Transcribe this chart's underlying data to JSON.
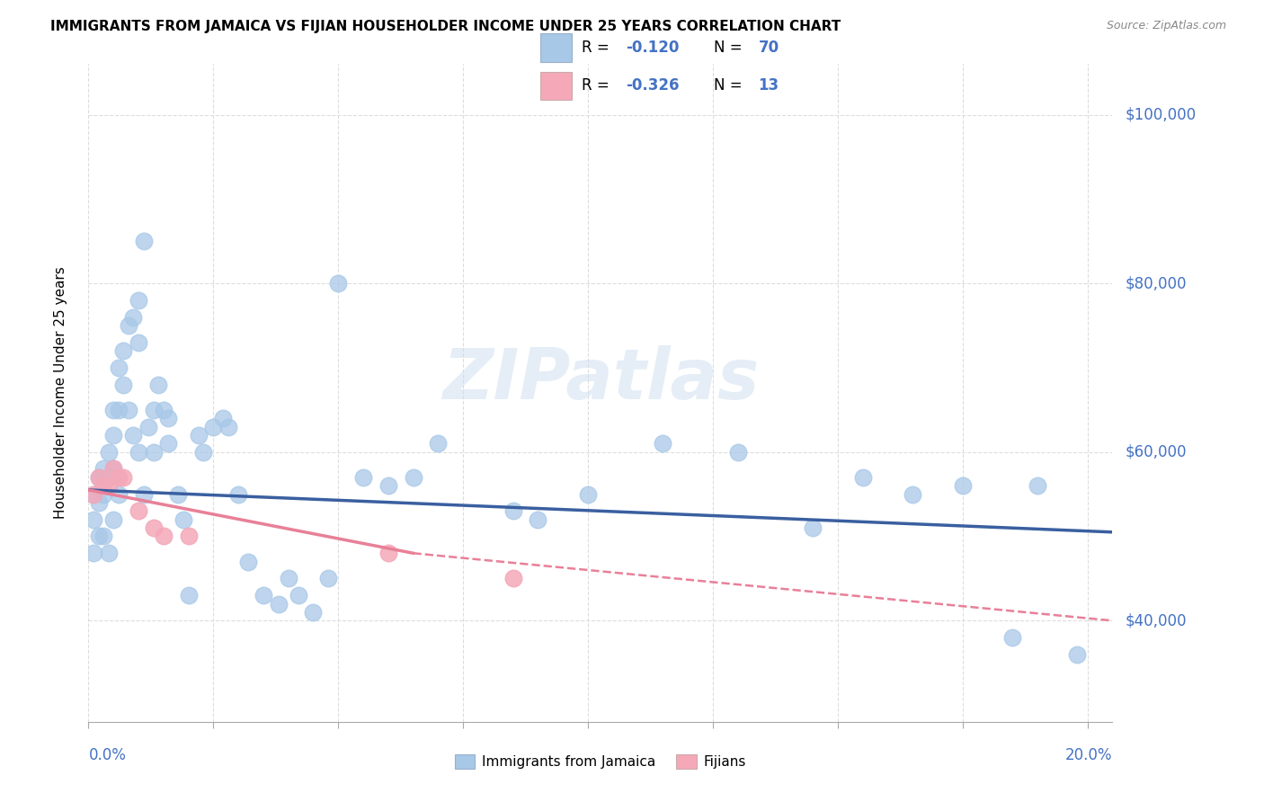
{
  "title": "IMMIGRANTS FROM JAMAICA VS FIJIAN HOUSEHOLDER INCOME UNDER 25 YEARS CORRELATION CHART",
  "source": "Source: ZipAtlas.com",
  "ylabel": "Householder Income Under 25 years",
  "legend1_label": "Immigrants from Jamaica",
  "legend2_label": "Fijians",
  "r1": "-0.120",
  "n1": "70",
  "r2": "-0.326",
  "n2": "13",
  "color_jamaica": "#a8c8e8",
  "color_fijian": "#f4a8b8",
  "color_jamaica_line": "#3a5fa0",
  "color_fijian_line": "#e88098",
  "color_blue": "#4472c4",
  "watermark": "ZIPatlas",
  "y_tick_labels": [
    "$40,000",
    "$60,000",
    "$80,000",
    "$100,000"
  ],
  "y_tick_values": [
    40000,
    60000,
    80000,
    100000
  ],
  "xlim": [
    0.0,
    0.205
  ],
  "ylim": [
    28000,
    106000
  ],
  "jamaica_x": [
    0.001,
    0.001,
    0.001,
    0.002,
    0.002,
    0.002,
    0.003,
    0.003,
    0.003,
    0.004,
    0.004,
    0.004,
    0.005,
    0.005,
    0.005,
    0.005,
    0.006,
    0.006,
    0.006,
    0.007,
    0.007,
    0.008,
    0.008,
    0.009,
    0.009,
    0.01,
    0.01,
    0.01,
    0.011,
    0.011,
    0.012,
    0.013,
    0.013,
    0.014,
    0.015,
    0.016,
    0.016,
    0.018,
    0.019,
    0.02,
    0.022,
    0.023,
    0.025,
    0.027,
    0.028,
    0.03,
    0.032,
    0.035,
    0.038,
    0.04,
    0.042,
    0.045,
    0.048,
    0.05,
    0.055,
    0.06,
    0.065,
    0.07,
    0.085,
    0.09,
    0.1,
    0.115,
    0.13,
    0.145,
    0.155,
    0.165,
    0.175,
    0.185,
    0.19,
    0.198
  ],
  "jamaica_y": [
    55000,
    52000,
    48000,
    57000,
    54000,
    50000,
    58000,
    55000,
    50000,
    60000,
    57000,
    48000,
    65000,
    62000,
    58000,
    52000,
    70000,
    65000,
    55000,
    72000,
    68000,
    75000,
    65000,
    76000,
    62000,
    78000,
    73000,
    60000,
    85000,
    55000,
    63000,
    65000,
    60000,
    68000,
    65000,
    64000,
    61000,
    55000,
    52000,
    43000,
    62000,
    60000,
    63000,
    64000,
    63000,
    55000,
    47000,
    43000,
    42000,
    45000,
    43000,
    41000,
    45000,
    80000,
    57000,
    56000,
    57000,
    61000,
    53000,
    52000,
    55000,
    61000,
    60000,
    51000,
    57000,
    55000,
    56000,
    38000,
    56000,
    36000
  ],
  "fijian_x": [
    0.001,
    0.002,
    0.003,
    0.004,
    0.005,
    0.006,
    0.007,
    0.01,
    0.013,
    0.015,
    0.02,
    0.06,
    0.085
  ],
  "fijian_y": [
    55000,
    57000,
    56000,
    56000,
    58000,
    57000,
    57000,
    53000,
    51000,
    50000,
    50000,
    48000,
    45000
  ]
}
